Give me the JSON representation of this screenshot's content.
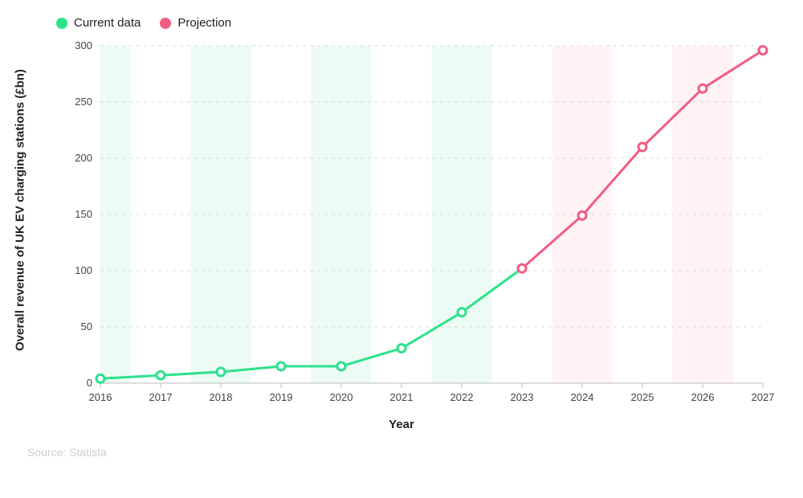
{
  "legend": {
    "current": {
      "label": "Current data",
      "color": "#2be28c"
    },
    "projection": {
      "label": "Projection",
      "color": "#f25c82"
    }
  },
  "chart": {
    "type": "line",
    "x_label": "Year",
    "y_label": "Overall revenue of UK EV charging stations (£bn)",
    "background_color": "#ffffff",
    "grid_color": "#d9d9d9",
    "grid_dash": "4 5",
    "axis_color": "#bdbdbd",
    "ylim": [
      0,
      300
    ],
    "ytick_step": 50,
    "yticks": [
      0,
      50,
      100,
      150,
      200,
      250,
      300
    ],
    "xlim": [
      2016,
      2027
    ],
    "xticks": [
      2016,
      2017,
      2018,
      2019,
      2020,
      2021,
      2022,
      2023,
      2024,
      2025,
      2026,
      2027
    ],
    "band_current_fill": "#ecfbf3",
    "band_projection_fill": "#fff3f5",
    "series": [
      {
        "name": "current",
        "color": "#2be28c",
        "line_width": 3,
        "marker": "circle",
        "marker_radius": 5,
        "marker_fill": "#ffffff",
        "marker_stroke_width": 3,
        "points": [
          {
            "x": 2016,
            "y": 4
          },
          {
            "x": 2017,
            "y": 7
          },
          {
            "x": 2018,
            "y": 10
          },
          {
            "x": 2019,
            "y": 15
          },
          {
            "x": 2020,
            "y": 15
          },
          {
            "x": 2021,
            "y": 31
          },
          {
            "x": 2022,
            "y": 63
          },
          {
            "x": 2023,
            "y": 102
          }
        ]
      },
      {
        "name": "projection",
        "color": "#f25c82",
        "line_width": 3,
        "marker": "circle",
        "marker_radius": 5,
        "marker_fill": "#ffffff",
        "marker_stroke_width": 3,
        "points": [
          {
            "x": 2023,
            "y": 102
          },
          {
            "x": 2024,
            "y": 149
          },
          {
            "x": 2025,
            "y": 210
          },
          {
            "x": 2026,
            "y": 262
          },
          {
            "x": 2027,
            "y": 296
          }
        ]
      }
    ],
    "label_fontsize": 15,
    "tick_fontsize": 13
  },
  "source": "Source: Statista"
}
